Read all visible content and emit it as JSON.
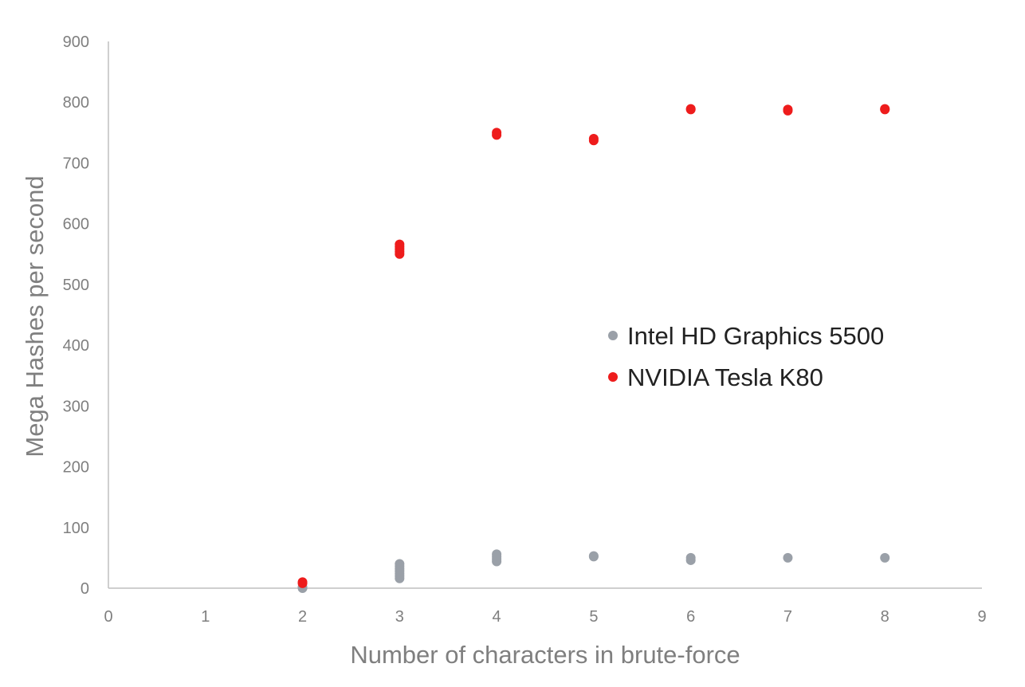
{
  "chart_data": {
    "type": "scatter",
    "title": "",
    "xlabel": "Number of characters in brute-force",
    "ylabel": "Mega Hashes per second",
    "xlim": [
      0,
      9
    ],
    "ylim": [
      0,
      900
    ],
    "xticks": [
      0,
      1,
      2,
      3,
      4,
      5,
      6,
      7,
      8,
      9
    ],
    "yticks": [
      0,
      100,
      200,
      300,
      400,
      500,
      600,
      700,
      800,
      900
    ],
    "grid": false,
    "legend_position": "right-center",
    "series": [
      {
        "name": "Intel HD Graphics 5500",
        "color": "#9aa0a8",
        "points": [
          {
            "x": 2,
            "y": 0
          },
          {
            "x": 2,
            "y": 2
          },
          {
            "x": 3,
            "y": 16
          },
          {
            "x": 3,
            "y": 20
          },
          {
            "x": 3,
            "y": 24
          },
          {
            "x": 3,
            "y": 28
          },
          {
            "x": 3,
            "y": 32
          },
          {
            "x": 3,
            "y": 36
          },
          {
            "x": 3,
            "y": 40
          },
          {
            "x": 4,
            "y": 44
          },
          {
            "x": 4,
            "y": 48
          },
          {
            "x": 4,
            "y": 52
          },
          {
            "x": 4,
            "y": 56
          },
          {
            "x": 5,
            "y": 52
          },
          {
            "x": 5,
            "y": 53
          },
          {
            "x": 6,
            "y": 46
          },
          {
            "x": 6,
            "y": 50
          },
          {
            "x": 7,
            "y": 50
          },
          {
            "x": 8,
            "y": 50
          }
        ]
      },
      {
        "name": "NVIDIA Tesla K80",
        "color": "#ee1c1c",
        "points": [
          {
            "x": 2,
            "y": 8
          },
          {
            "x": 2,
            "y": 10
          },
          {
            "x": 3,
            "y": 550
          },
          {
            "x": 3,
            "y": 554
          },
          {
            "x": 3,
            "y": 558
          },
          {
            "x": 3,
            "y": 562
          },
          {
            "x": 3,
            "y": 566
          },
          {
            "x": 4,
            "y": 746
          },
          {
            "x": 4,
            "y": 750
          },
          {
            "x": 5,
            "y": 737
          },
          {
            "x": 5,
            "y": 740
          },
          {
            "x": 6,
            "y": 788
          },
          {
            "x": 6,
            "y": 789
          },
          {
            "x": 7,
            "y": 786
          },
          {
            "x": 7,
            "y": 788
          },
          {
            "x": 8,
            "y": 788
          },
          {
            "x": 8,
            "y": 789
          }
        ]
      }
    ]
  }
}
